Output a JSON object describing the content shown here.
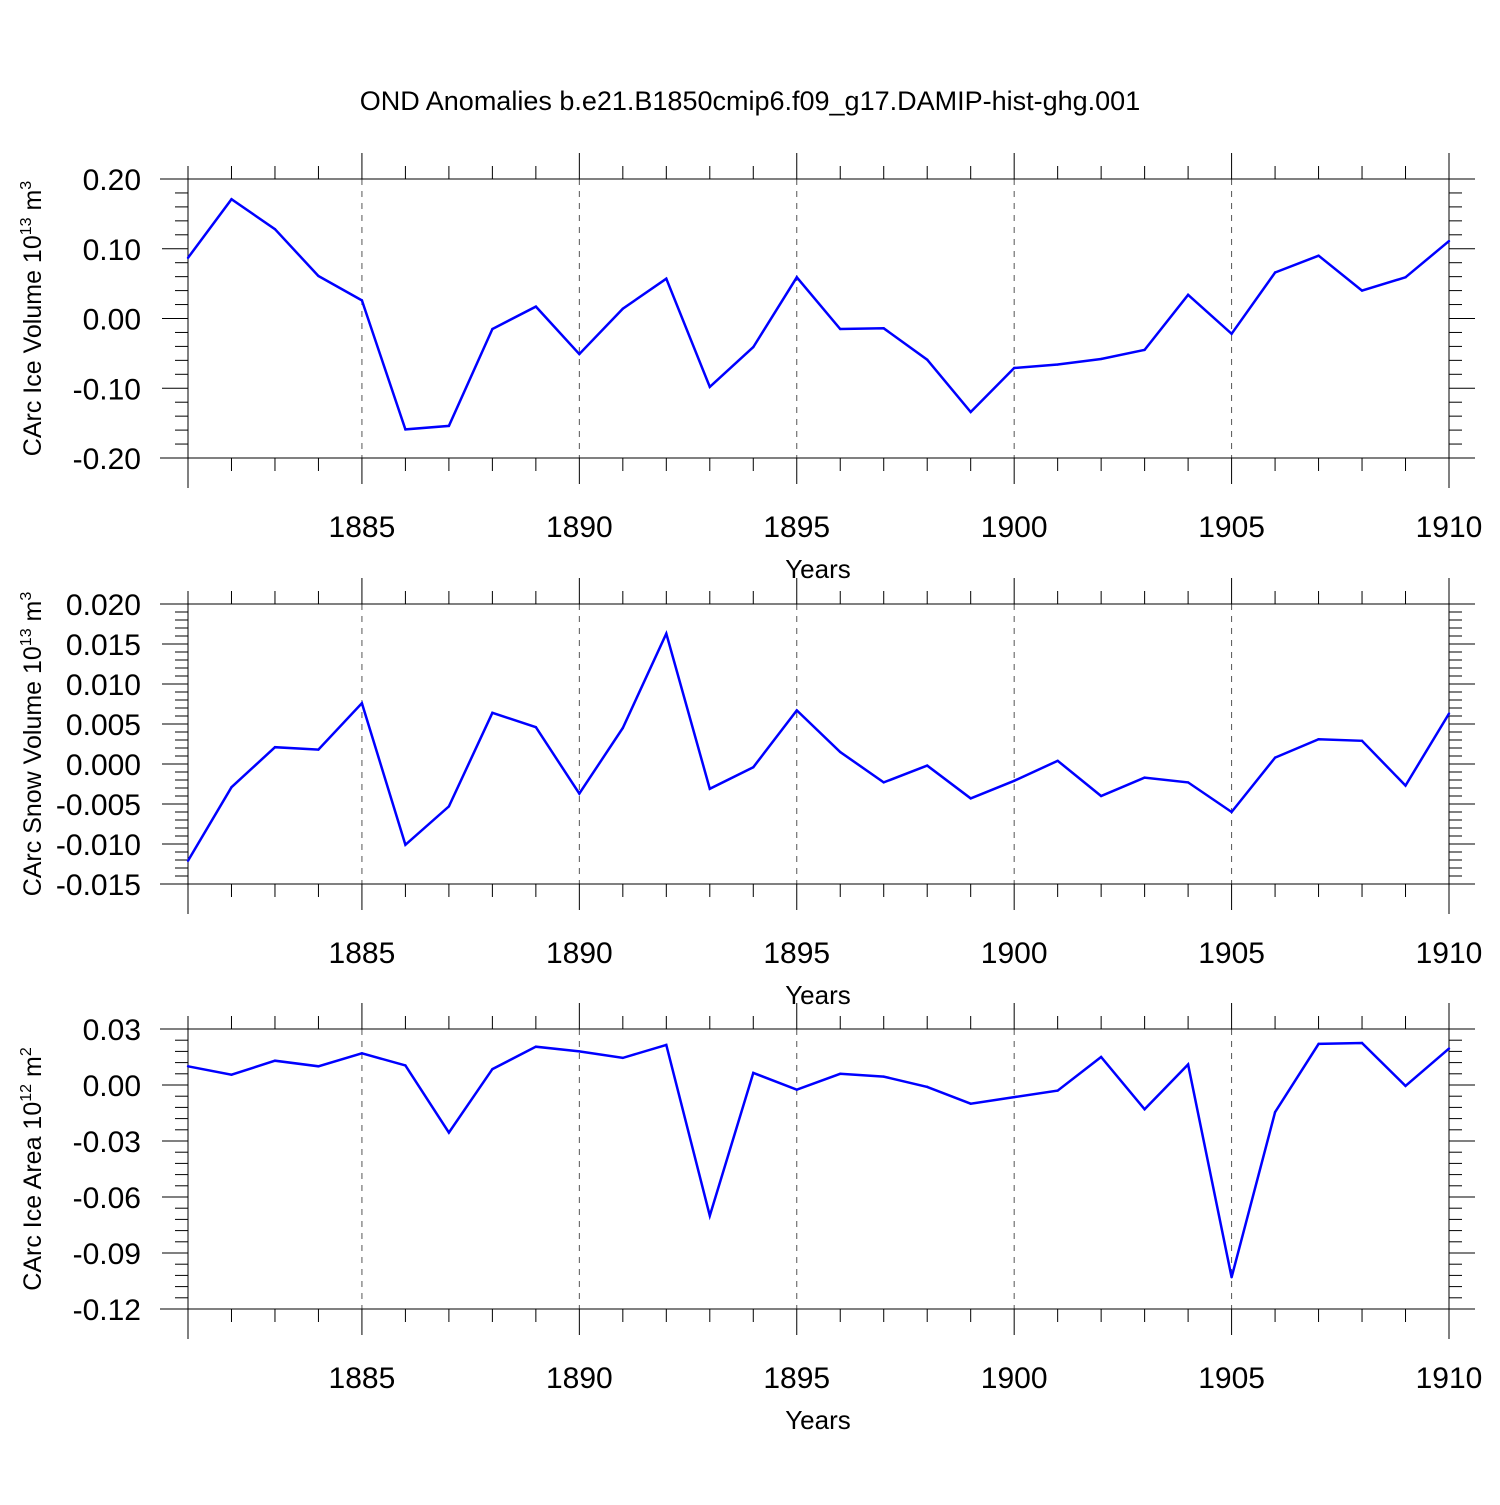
{
  "title": "OND Anomalies b.e21.B1850cmip6.f09_g17.DAMIP-hist-ghg.001",
  "colors": {
    "line": "#0000ff",
    "axis": "#000000",
    "grid": "#555555"
  },
  "chart_data": [
    {
      "type": "line",
      "title": "OND Anomalies b.e21.B1850cmip6.f09_g17.DAMIP-hist-ghg.001",
      "ylabel": "CArc Ice Volume 10",
      "ylabel_sup": "13",
      "ylabel_unit": "m",
      "ylabel_unit_sup": "3",
      "xlabel": "Years",
      "xlim": [
        1881,
        1910
      ],
      "ylim": [
        -0.2,
        0.2
      ],
      "x_ticks": [
        1885,
        1890,
        1895,
        1900,
        1905,
        1910
      ],
      "y_ticks": [
        -0.2,
        -0.1,
        0.0,
        0.1,
        0.2
      ],
      "y_tick_labels": [
        "-0.20",
        "-0.10",
        "0.00",
        "0.10",
        "0.20"
      ],
      "grid": "x-dashed",
      "x": [
        1881,
        1882,
        1883,
        1884,
        1885,
        1886,
        1887,
        1888,
        1889,
        1890,
        1891,
        1892,
        1893,
        1894,
        1895,
        1896,
        1897,
        1898,
        1899,
        1900,
        1901,
        1902,
        1903,
        1904,
        1905,
        1906,
        1907,
        1908,
        1909,
        1910
      ],
      "values": [
        0.087,
        0.171,
        0.128,
        0.061,
        0.026,
        -0.159,
        -0.154,
        -0.015,
        0.017,
        -0.051,
        0.014,
        0.057,
        -0.098,
        -0.041,
        0.059,
        -0.015,
        -0.014,
        -0.059,
        -0.134,
        -0.071,
        -0.066,
        -0.058,
        -0.045,
        0.034,
        -0.022,
        0.066,
        0.09,
        0.04,
        0.059,
        0.111
      ]
    },
    {
      "type": "line",
      "ylabel": "CArc Snow Volume 10",
      "ylabel_sup": "13",
      "ylabel_unit": "m",
      "ylabel_unit_sup": "3",
      "xlabel": "Years",
      "xlim": [
        1881,
        1910
      ],
      "ylim": [
        -0.015,
        0.02
      ],
      "x_ticks": [
        1885,
        1890,
        1895,
        1900,
        1905,
        1910
      ],
      "y_ticks": [
        -0.015,
        -0.01,
        -0.005,
        0.0,
        0.005,
        0.01,
        0.015,
        0.02
      ],
      "y_tick_labels": [
        "-0.015",
        "-0.010",
        "-0.005",
        "0.000",
        "0.005",
        "0.010",
        "0.015",
        "0.020"
      ],
      "grid": "x-dashed",
      "x": [
        1881,
        1882,
        1883,
        1884,
        1885,
        1886,
        1887,
        1888,
        1889,
        1890,
        1891,
        1892,
        1893,
        1894,
        1895,
        1896,
        1897,
        1898,
        1899,
        1900,
        1901,
        1902,
        1903,
        1904,
        1905,
        1906,
        1907,
        1908,
        1909,
        1910
      ],
      "values": [
        -0.0121,
        -0.0029,
        0.0021,
        0.0018,
        0.0076,
        -0.0101,
        -0.0053,
        0.0064,
        0.0046,
        -0.0037,
        0.0045,
        0.0163,
        -0.0031,
        -0.0004,
        0.0067,
        0.0015,
        -0.0023,
        -0.0002,
        -0.0043,
        -0.0021,
        0.0004,
        -0.004,
        -0.0017,
        -0.0023,
        -0.006,
        0.0008,
        0.0031,
        0.0029,
        -0.0027,
        0.0063
      ]
    },
    {
      "type": "line",
      "ylabel": "CArc Ice Area 10",
      "ylabel_sup": "12",
      "ylabel_unit": "m",
      "ylabel_unit_sup": "2",
      "xlabel": "Years",
      "xlim": [
        1881,
        1910
      ],
      "ylim": [
        -0.12,
        0.03
      ],
      "x_ticks": [
        1885,
        1890,
        1895,
        1900,
        1905,
        1910
      ],
      "y_ticks": [
        -0.12,
        -0.09,
        -0.06,
        -0.03,
        0.0,
        0.03
      ],
      "y_tick_labels": [
        "-0.12",
        "-0.09",
        "-0.06",
        "-0.03",
        "0.00",
        "0.03"
      ],
      "grid": "x-dashed",
      "x": [
        1881,
        1882,
        1883,
        1884,
        1885,
        1886,
        1887,
        1888,
        1889,
        1890,
        1891,
        1892,
        1893,
        1894,
        1895,
        1896,
        1897,
        1898,
        1899,
        1900,
        1901,
        1902,
        1903,
        1904,
        1905,
        1906,
        1907,
        1908,
        1909,
        1910
      ],
      "values": [
        0.01,
        0.0055,
        0.013,
        0.01,
        0.017,
        0.0105,
        -0.0255,
        0.0085,
        0.0205,
        0.018,
        0.0145,
        0.0215,
        -0.07,
        0.0065,
        -0.0025,
        0.006,
        0.0045,
        -0.001,
        -0.01,
        -0.0065,
        -0.003,
        0.015,
        -0.013,
        0.011,
        -0.103,
        -0.0145,
        0.022,
        0.0225,
        -0.0005,
        0.0195
      ]
    }
  ]
}
